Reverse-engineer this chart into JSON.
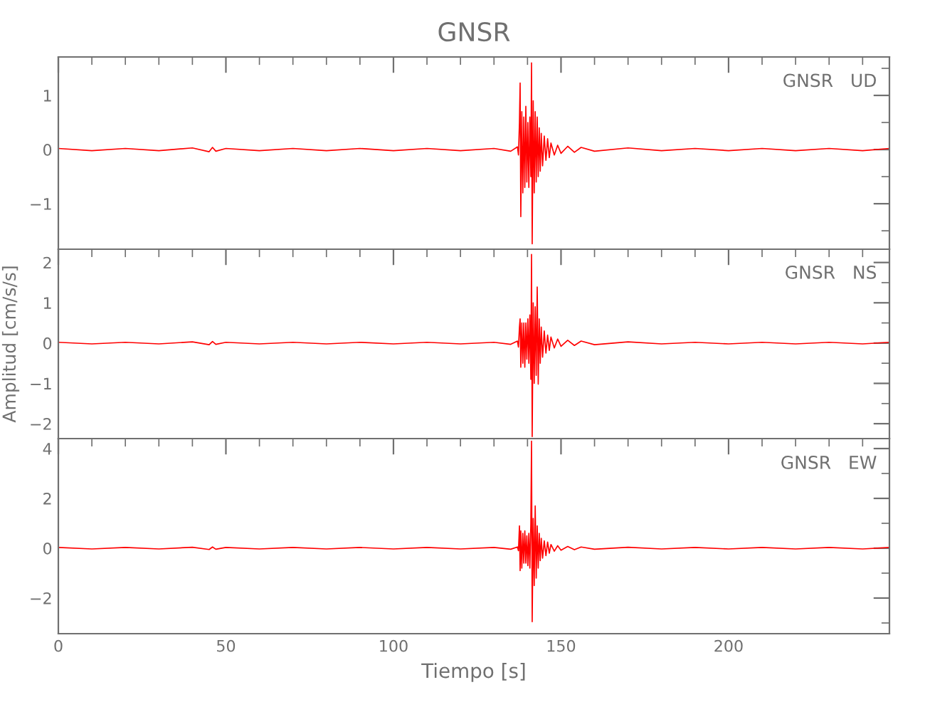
{
  "chart_data": [
    {
      "type": "line",
      "title": "GNSR",
      "annotations": [
        "GNSR   UD"
      ],
      "xlim": [
        0,
        248
      ],
      "xticks": [
        0,
        50,
        100,
        150,
        200
      ],
      "ylim": [
        -1.84,
        1.71
      ],
      "yticks": [
        -1,
        0,
        1
      ],
      "tick_labels": "y",
      "grid": false,
      "marker": "none",
      "line_style": "solid",
      "x": [
        0,
        10,
        20,
        30,
        40,
        45,
        46,
        47,
        50,
        60,
        70,
        80,
        90,
        100,
        110,
        120,
        130,
        135,
        137,
        137.3,
        137.6,
        137.8,
        138.0,
        138.3,
        138.6,
        138.9,
        139.2,
        139.5,
        139.8,
        140.1,
        140.4,
        140.7,
        141.0,
        141.2,
        141.4,
        141.7,
        142.0,
        142.3,
        142.6,
        142.9,
        143.2,
        143.5,
        143.8,
        144.1,
        144.5,
        145,
        145.5,
        146,
        146.5,
        147,
        148,
        149,
        150,
        152,
        154,
        156,
        160,
        170,
        180,
        190,
        200,
        210,
        220,
        230,
        240,
        248
      ],
      "series": [
        {
          "color": "#ff0000",
          "values": [
            0.02,
            -0.02,
            0.02,
            -0.02,
            0.03,
            -0.04,
            0.04,
            -0.03,
            0.02,
            -0.02,
            0.02,
            -0.02,
            0.02,
            -0.02,
            0.02,
            -0.02,
            0.02,
            -0.03,
            0.05,
            -0.1,
            0.5,
            1.23,
            -1.24,
            0.7,
            -0.8,
            0.6,
            -0.7,
            0.8,
            -0.6,
            0.5,
            -0.7,
            0.6,
            -0.5,
            1.6,
            -1.74,
            0.9,
            -0.8,
            0.7,
            -0.6,
            0.6,
            -0.5,
            0.4,
            -0.4,
            0.3,
            -0.3,
            0.25,
            -0.2,
            0.2,
            -0.15,
            0.12,
            -0.1,
            0.08,
            -0.07,
            0.06,
            -0.05,
            0.04,
            -0.03,
            0.03,
            -0.02,
            0.02,
            -0.02,
            0.02,
            -0.02,
            0.02,
            -0.02,
            0.02
          ]
        }
      ]
    },
    {
      "type": "line",
      "ylabel": "Amplitud [cm/s/s]",
      "annotations": [
        "GNSR   NS"
      ],
      "xlim": [
        0,
        248
      ],
      "xticks": [
        0,
        50,
        100,
        150,
        200
      ],
      "ylim": [
        -2.37,
        2.33
      ],
      "yticks": [
        -2,
        -1,
        0,
        1,
        2
      ],
      "tick_labels": "y",
      "grid": false,
      "marker": "none",
      "line_style": "solid",
      "x": [
        0,
        10,
        20,
        30,
        40,
        45,
        46,
        47,
        50,
        60,
        70,
        80,
        90,
        100,
        110,
        120,
        130,
        135,
        137,
        137.3,
        137.6,
        137.8,
        138.0,
        138.3,
        138.6,
        138.9,
        139.2,
        139.5,
        139.8,
        140.1,
        140.4,
        140.7,
        141.0,
        141.2,
        141.4,
        141.7,
        142.0,
        142.3,
        142.6,
        142.9,
        143.2,
        143.5,
        143.8,
        144.1,
        144.5,
        145,
        145.5,
        146,
        146.5,
        147,
        148,
        149,
        150,
        152,
        154,
        156,
        160,
        170,
        180,
        190,
        200,
        210,
        220,
        230,
        240,
        248
      ],
      "series": [
        {
          "color": "#ff0000",
          "values": [
            0.02,
            -0.02,
            0.02,
            -0.02,
            0.03,
            -0.04,
            0.04,
            -0.03,
            0.02,
            -0.02,
            0.02,
            -0.02,
            0.02,
            -0.02,
            0.02,
            -0.02,
            0.02,
            -0.03,
            0.05,
            -0.1,
            0.4,
            0.6,
            -0.6,
            0.5,
            -0.5,
            0.5,
            -0.6,
            0.5,
            -0.4,
            0.6,
            -0.5,
            0.7,
            -0.9,
            2.2,
            -2.32,
            1.0,
            -1.0,
            0.9,
            -0.8,
            1.39,
            -1.02,
            0.6,
            -0.5,
            0.4,
            -0.35,
            0.3,
            -0.25,
            0.2,
            -0.18,
            0.15,
            -0.12,
            0.1,
            -0.08,
            0.07,
            -0.06,
            0.05,
            -0.04,
            0.03,
            -0.02,
            0.02,
            -0.02,
            0.02,
            -0.02,
            0.02,
            -0.02,
            0.02
          ]
        }
      ]
    },
    {
      "type": "line",
      "xlabel": "Tiempo [s]",
      "annotations": [
        "GNSR   EW"
      ],
      "xlim": [
        0,
        248
      ],
      "xticks": [
        0,
        50,
        100,
        150,
        200
      ],
      "ylim": [
        -3.43,
        4.4
      ],
      "yticks": [
        -2,
        0,
        2,
        4
      ],
      "grid": false,
      "marker": "none",
      "line_style": "solid",
      "x": [
        0,
        10,
        20,
        30,
        40,
        45,
        46,
        47,
        50,
        60,
        70,
        80,
        90,
        100,
        110,
        120,
        130,
        135,
        137,
        137.3,
        137.6,
        137.8,
        138.0,
        138.3,
        138.6,
        138.9,
        139.2,
        139.5,
        139.8,
        140.1,
        140.4,
        140.7,
        141.0,
        141.2,
        141.4,
        141.7,
        142.0,
        142.3,
        142.6,
        142.9,
        143.2,
        143.5,
        143.8,
        144.1,
        144.5,
        145,
        145.5,
        146,
        146.5,
        147,
        148,
        149,
        150,
        152,
        154,
        156,
        160,
        170,
        180,
        190,
        200,
        210,
        220,
        230,
        240,
        248
      ],
      "series": [
        {
          "color": "#ff0000",
          "values": [
            0.03,
            -0.03,
            0.03,
            -0.03,
            0.04,
            -0.05,
            0.05,
            -0.04,
            0.03,
            -0.03,
            0.03,
            -0.03,
            0.03,
            -0.03,
            0.03,
            -0.03,
            0.03,
            -0.04,
            0.05,
            -0.1,
            0.9,
            -0.9,
            0.7,
            -0.8,
            0.6,
            -0.6,
            0.7,
            -0.6,
            0.5,
            -0.7,
            0.6,
            -0.8,
            1.0,
            4.3,
            -2.95,
            1.2,
            -1.5,
            1.7,
            -1.2,
            0.9,
            -0.8,
            0.6,
            -0.5,
            0.4,
            -0.4,
            0.3,
            -0.3,
            0.25,
            -0.2,
            0.15,
            -0.12,
            0.1,
            -0.08,
            0.07,
            -0.06,
            0.05,
            -0.04,
            0.04,
            -0.03,
            0.03,
            -0.03,
            0.03,
            -0.03,
            0.03,
            -0.03,
            0.03
          ]
        }
      ]
    }
  ]
}
